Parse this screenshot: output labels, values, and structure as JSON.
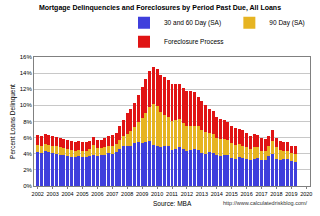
{
  "chart_data": {
    "type": "bar",
    "title": "Mortgage Delinquencies and Foreclosures by Period Past Due, All Loans",
    "ylabel": "Percent Loans Delinquent",
    "annotations": [
      "Source: MBA",
      "http://www.calculatedriskblog.com/"
    ],
    "stacked": true,
    "grid": true,
    "legend": "top right",
    "x": [
      2002,
      2002.25,
      2002.5,
      2002.75,
      2003,
      2003.25,
      2003.5,
      2003.75,
      2004,
      2004.25,
      2004.5,
      2004.75,
      2005,
      2005.25,
      2005.5,
      2005.75,
      2006,
      2006.25,
      2006.5,
      2006.75,
      2007,
      2007.25,
      2007.5,
      2007.75,
      2008,
      2008.25,
      2008.5,
      2008.75,
      2009,
      2009.25,
      2009.5,
      2009.75,
      2010,
      2010.25,
      2010.5,
      2010.75,
      2011,
      2011.25,
      2011.5,
      2011.75,
      2012,
      2012.25,
      2012.5,
      2012.75,
      2013,
      2013.25,
      2013.5,
      2013.75,
      2014,
      2014.25,
      2014.5,
      2014.75,
      2015,
      2015.25,
      2015.5,
      2015.75,
      2016,
      2016.25,
      2016.5,
      2016.75,
      2017,
      2017.25,
      2017.5,
      2017.75,
      2018,
      2018.25,
      2018.5,
      2018.75,
      2019,
      2019.25
    ],
    "xlim": [
      2001.75,
      2020.25
    ],
    "xticks": [
      2002,
      2003,
      2004,
      2005,
      2006,
      2007,
      2008,
      2009,
      2010,
      2011,
      2012,
      2013,
      2014,
      2015,
      2016,
      2017,
      2018,
      2019,
      2020
    ],
    "ylim": [
      0,
      16
    ],
    "yticks": [
      {
        "value": 0,
        "label": "0%"
      },
      {
        "value": 2,
        "label": "2%"
      },
      {
        "value": 4,
        "label": "4%"
      },
      {
        "value": 6,
        "label": "6%"
      },
      {
        "value": 8,
        "label": "8%"
      },
      {
        "value": 10,
        "label": "10%"
      },
      {
        "value": 12,
        "label": "12%"
      },
      {
        "value": 14,
        "label": "14%"
      },
      {
        "value": 16,
        "label": "16%"
      }
    ],
    "series": [
      {
        "name": "30 and 60 Day (SA)",
        "color": "#3f3fdc",
        "values": [
          4.2,
          4.1,
          4.3,
          4.2,
          4.1,
          4.0,
          3.9,
          3.8,
          3.7,
          3.6,
          3.6,
          3.7,
          3.6,
          3.6,
          3.7,
          3.9,
          3.7,
          3.8,
          3.9,
          4.1,
          4.0,
          4.2,
          4.6,
          4.9,
          4.9,
          5.0,
          5.3,
          5.5,
          5.3,
          5.4,
          5.6,
          5.1,
          5.0,
          4.8,
          4.9,
          4.9,
          4.5,
          4.6,
          4.8,
          4.6,
          4.3,
          4.5,
          4.6,
          4.5,
          4.1,
          4.0,
          4.2,
          4.1,
          3.8,
          3.7,
          3.8,
          3.8,
          3.5,
          3.4,
          3.6,
          3.5,
          3.3,
          3.2,
          3.4,
          3.5,
          3.2,
          3.2,
          3.7,
          4.0,
          3.3,
          3.2,
          3.3,
          3.4,
          3.1,
          3.0
        ]
      },
      {
        "name": "90 Day (SA)",
        "color": "#e6b422",
        "values": [
          0.9,
          0.9,
          0.9,
          0.9,
          0.9,
          0.9,
          0.9,
          0.9,
          0.9,
          0.9,
          0.8,
          0.8,
          0.8,
          0.8,
          0.9,
          1.2,
          1.0,
          0.9,
          0.9,
          0.9,
          1.0,
          1.0,
          1.1,
          1.3,
          1.6,
          1.8,
          2.0,
          2.5,
          3.1,
          3.6,
          4.2,
          5.1,
          4.9,
          4.4,
          3.9,
          3.6,
          3.6,
          3.6,
          3.5,
          3.2,
          3.1,
          3.0,
          2.9,
          2.9,
          2.8,
          2.7,
          2.4,
          2.3,
          2.2,
          2.1,
          2.0,
          1.9,
          1.8,
          1.7,
          1.6,
          1.5,
          1.5,
          1.4,
          1.4,
          1.3,
          1.2,
          1.2,
          1.2,
          1.6,
          1.5,
          1.3,
          1.1,
          1.0,
          1.0,
          1.0
        ]
      },
      {
        "name": "Foreclosure Process",
        "color": "#e01414",
        "values": [
          1.2,
          1.2,
          1.2,
          1.2,
          1.2,
          1.2,
          1.1,
          1.1,
          1.1,
          1.1,
          1.1,
          1.1,
          1.1,
          1.0,
          1.0,
          1.0,
          1.0,
          1.0,
          1.1,
          1.2,
          1.3,
          1.4,
          1.7,
          2.0,
          2.5,
          2.8,
          3.0,
          3.3,
          3.9,
          4.3,
          4.5,
          4.6,
          4.6,
          4.6,
          4.7,
          4.6,
          4.5,
          4.4,
          4.4,
          4.4,
          4.4,
          4.3,
          4.1,
          3.7,
          3.6,
          3.3,
          2.9,
          2.9,
          2.6,
          2.5,
          2.4,
          2.3,
          2.2,
          2.1,
          1.9,
          1.9,
          1.8,
          1.6,
          1.6,
          1.5,
          1.5,
          1.4,
          1.3,
          1.3,
          1.2,
          1.1,
          1.0,
          1.0,
          0.9,
          0.9
        ]
      }
    ]
  }
}
